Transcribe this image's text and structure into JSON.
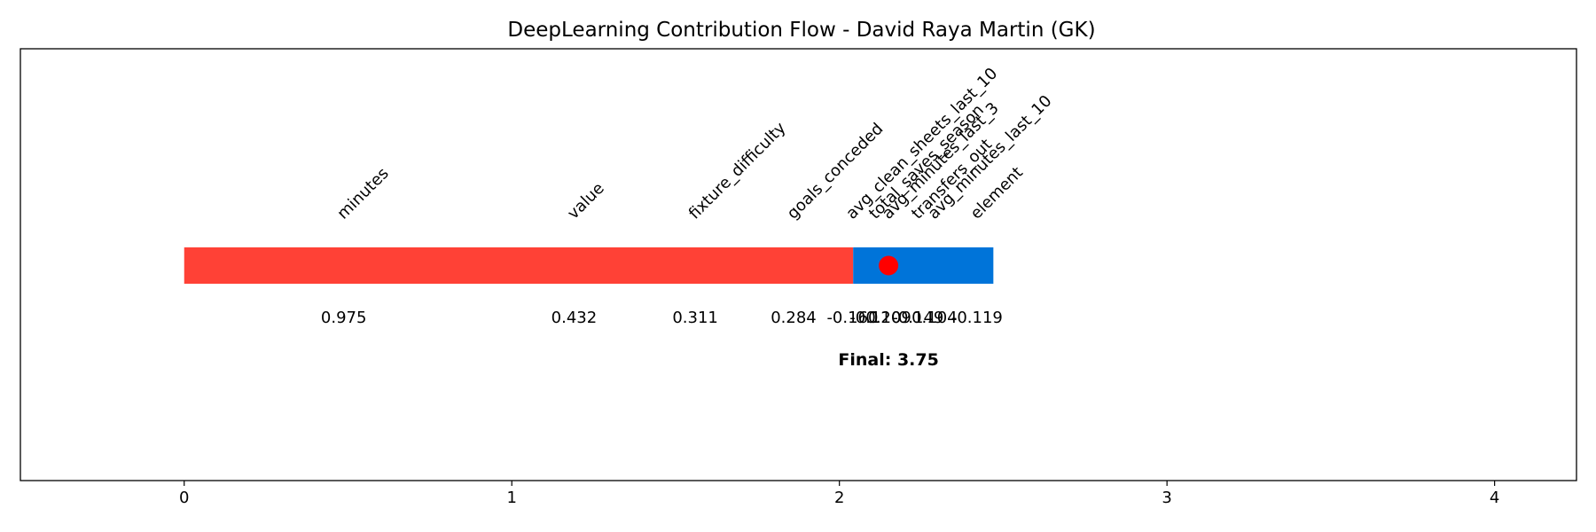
{
  "chart_data": {
    "type": "bar",
    "title": "DeepLearning Contribution Flow - David Raya Martin (GK)",
    "xlabel": "",
    "ylabel": "",
    "xlim": [
      -0.5,
      4.25
    ],
    "x_ticks": [
      0,
      1,
      2,
      3,
      4
    ],
    "x_tick_labels": [
      "0",
      "1",
      "2",
      "3",
      "4"
    ],
    "grid": false,
    "legend": "none",
    "colors": {
      "positive": "#ff4136",
      "negative": "#0074d9",
      "marker": "#ff0000"
    },
    "segments": [
      {
        "start": 0.0,
        "end": 2.042,
        "sign": "positive"
      },
      {
        "start": 2.042,
        "end": 2.47,
        "sign": "negative"
      }
    ],
    "contributions": [
      {
        "feature": "minutes",
        "label_x": 0.487,
        "value_label": "0.975"
      },
      {
        "feature": "value",
        "label_x": 1.19,
        "value_label": "0.432"
      },
      {
        "feature": "fixture_difficulty",
        "label_x": 1.56,
        "value_label": "0.311"
      },
      {
        "feature": "goals_conceded",
        "label_x": 1.86,
        "value_label": "0.284"
      },
      {
        "feature": "avg_clean_sheets_last_10",
        "label_x": 2.04,
        "value_label": "-0.160"
      },
      {
        "feature": "total_saves_season",
        "label_x": 2.11,
        "value_label": "-0.120"
      },
      {
        "feature": "avg_minutes_last_3",
        "label_x": 2.15,
        "value_label": "0.109"
      },
      {
        "feature": "transfers_out",
        "label_x": 2.24,
        "value_label": "-0.149"
      },
      {
        "feature": "avg_minutes_last_10",
        "label_x": 2.29,
        "value_label": "0.104"
      },
      {
        "feature": "element",
        "label_x": 2.42,
        "value_label": "-0.119"
      }
    ],
    "final": {
      "x": 2.15,
      "value": 3.75,
      "label": "Final: 3.75"
    }
  }
}
